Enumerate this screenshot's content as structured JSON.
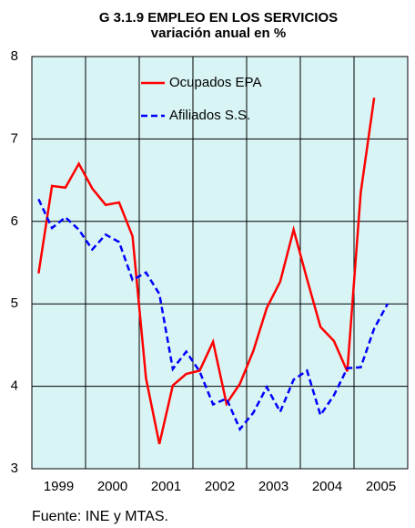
{
  "chart_data": {
    "type": "line",
    "title": "G 3.1.9  EMPLEO EN LOS SERVICIOS",
    "subtitle": "variación anual en %",
    "year_labels": [
      "1999",
      "2000",
      "2001",
      "2002",
      "2003",
      "2004",
      "2005"
    ],
    "series": [
      {
        "name": "Ocupados EPA",
        "color": "#ff0000",
        "dashed": false,
        "values": [
          5.37,
          6.43,
          6.41,
          6.7,
          6.4,
          6.2,
          6.23,
          5.82,
          4.1,
          3.3,
          4.01,
          4.15,
          4.19,
          4.54,
          3.79,
          4.03,
          4.43,
          4.95,
          5.27,
          5.9,
          5.3,
          4.72,
          4.55,
          4.18,
          6.35,
          7.5
        ]
      },
      {
        "name": "Afiliados S.S.",
        "color": "#0000ff",
        "dashed": true,
        "values": [
          6.27,
          5.92,
          6.05,
          5.9,
          5.66,
          5.84,
          5.75,
          5.29,
          5.38,
          5.12,
          4.21,
          4.42,
          4.18,
          3.78,
          3.85,
          3.48,
          3.68,
          3.99,
          3.69,
          4.08,
          4.19,
          3.65,
          3.89,
          4.22,
          4.23,
          4.7,
          5.0
        ]
      }
    ],
    "ylim": [
      3,
      8
    ],
    "yticks": [
      3,
      4,
      5,
      6,
      7,
      8
    ],
    "grid": true,
    "background": "#d8f4f4",
    "source": "Fuente: INE y MTAS."
  }
}
